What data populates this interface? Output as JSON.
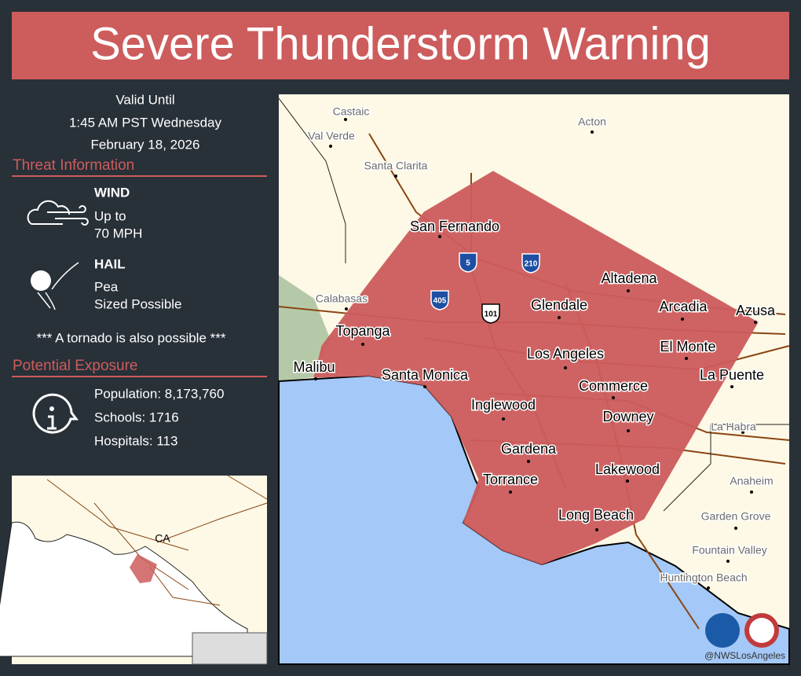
{
  "header": {
    "title": "Severe Thunderstorm Warning"
  },
  "valid": [
    "Valid Until",
    "1:45 AM PST Wednesday",
    "February 18, 2026"
  ],
  "threat": {
    "heading": "Threat Information",
    "items": [
      {
        "label": "WIND",
        "lines": [
          "Up to",
          "70  MPH"
        ]
      },
      {
        "label": "HAIL",
        "lines": [
          "Pea",
          "Sized Possible"
        ]
      }
    ],
    "note": "*** A tornado is also possible ***"
  },
  "exposure": {
    "heading": "Potential Exposure",
    "lines": [
      "Population: 8,173,760",
      "Schools: 1716",
      "Hospitals: 113"
    ]
  },
  "inset": {
    "label": "CA"
  },
  "map": {
    "towns": [
      "Castaic",
      "Val Verde",
      "Santa Clarita",
      "Acton",
      "Calabasas",
      "La Habra",
      "Anaheim",
      "Garden Grove",
      "Fountain Valley",
      "Huntington Beach"
    ],
    "cities": [
      "San Fernando",
      "Altadena",
      "Glendale",
      "Arcadia",
      "Azusa",
      "Topanga",
      "Los Angeles",
      "El Monte",
      "Malibu",
      "Santa Monica",
      "La Puente",
      "Commerce",
      "Inglewood",
      "Downey",
      "Gardena",
      "Lakewood",
      "Torrance",
      "Long Beach"
    ],
    "shields": [
      "5",
      "210",
      "405",
      "101"
    ],
    "credit": "@NWSLosAngeles"
  }
}
